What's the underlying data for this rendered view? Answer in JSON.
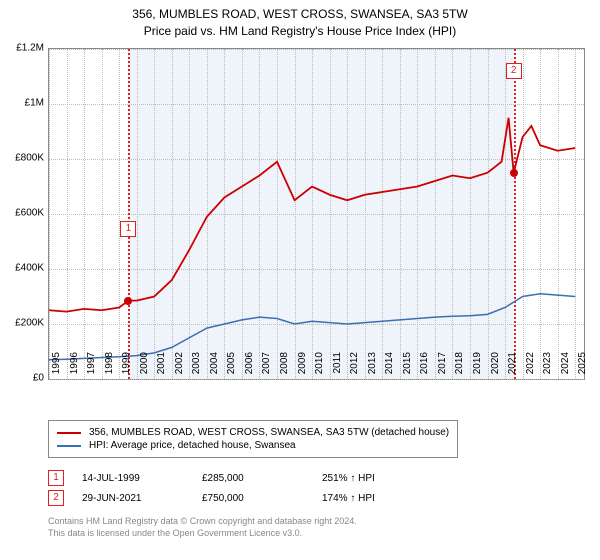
{
  "title_line1": "356, MUMBLES ROAD, WEST CROSS, SWANSEA, SA3 5TW",
  "title_line2": "Price paid vs. HM Land Registry's House Price Index (HPI)",
  "chart": {
    "type": "line",
    "x_start": 1995,
    "x_end": 2025.5,
    "y_min": 0,
    "y_max": 1200000,
    "y_ticks": [
      0,
      200000,
      400000,
      600000,
      800000,
      1000000,
      1200000
    ],
    "y_tick_labels": [
      "£0",
      "£200K",
      "£400K",
      "£600K",
      "£800K",
      "£1M",
      "£1.2M"
    ],
    "x_ticks": [
      1995,
      1996,
      1997,
      1998,
      1999,
      2000,
      2001,
      2002,
      2003,
      2004,
      2005,
      2006,
      2007,
      2008,
      2009,
      2010,
      2011,
      2012,
      2013,
      2014,
      2015,
      2016,
      2017,
      2018,
      2019,
      2020,
      2021,
      2022,
      2023,
      2024,
      2025
    ],
    "shade_start": 1999.53,
    "shade_end": 2021.49,
    "background_color": "#ffffff",
    "grid_color": "#bbbbbb",
    "series": [
      {
        "name": "property",
        "color": "#cc0000",
        "width": 1.8,
        "points": [
          [
            1995,
            250000
          ],
          [
            1996,
            245000
          ],
          [
            1997,
            255000
          ],
          [
            1998,
            250000
          ],
          [
            1999,
            260000
          ],
          [
            1999.53,
            285000
          ],
          [
            2000,
            285000
          ],
          [
            2001,
            300000
          ],
          [
            2002,
            360000
          ],
          [
            2003,
            470000
          ],
          [
            2004,
            590000
          ],
          [
            2005,
            660000
          ],
          [
            2006,
            700000
          ],
          [
            2007,
            740000
          ],
          [
            2008,
            790000
          ],
          [
            2008.5,
            720000
          ],
          [
            2009,
            650000
          ],
          [
            2010,
            700000
          ],
          [
            2011,
            670000
          ],
          [
            2012,
            650000
          ],
          [
            2013,
            670000
          ],
          [
            2014,
            680000
          ],
          [
            2015,
            690000
          ],
          [
            2016,
            700000
          ],
          [
            2017,
            720000
          ],
          [
            2018,
            740000
          ],
          [
            2019,
            730000
          ],
          [
            2020,
            750000
          ],
          [
            2020.8,
            790000
          ],
          [
            2021.2,
            950000
          ],
          [
            2021.49,
            750000
          ],
          [
            2022,
            880000
          ],
          [
            2022.5,
            920000
          ],
          [
            2023,
            850000
          ],
          [
            2024,
            830000
          ],
          [
            2025,
            840000
          ]
        ]
      },
      {
        "name": "hpi",
        "color": "#3b6fb3",
        "width": 1.5,
        "points": [
          [
            1995,
            70000
          ],
          [
            1996,
            72000
          ],
          [
            1997,
            75000
          ],
          [
            1998,
            78000
          ],
          [
            1999,
            81000
          ],
          [
            2000,
            85000
          ],
          [
            2001,
            95000
          ],
          [
            2002,
            115000
          ],
          [
            2003,
            150000
          ],
          [
            2004,
            185000
          ],
          [
            2005,
            200000
          ],
          [
            2006,
            215000
          ],
          [
            2007,
            225000
          ],
          [
            2008,
            220000
          ],
          [
            2009,
            200000
          ],
          [
            2010,
            210000
          ],
          [
            2011,
            205000
          ],
          [
            2012,
            200000
          ],
          [
            2013,
            205000
          ],
          [
            2014,
            210000
          ],
          [
            2015,
            215000
          ],
          [
            2016,
            220000
          ],
          [
            2017,
            225000
          ],
          [
            2018,
            228000
          ],
          [
            2019,
            230000
          ],
          [
            2020,
            235000
          ],
          [
            2021,
            260000
          ],
          [
            2022,
            300000
          ],
          [
            2023,
            310000
          ],
          [
            2024,
            305000
          ],
          [
            2025,
            300000
          ]
        ]
      }
    ],
    "markers": [
      {
        "id": "1",
        "x": 1999.53,
        "y": 285000,
        "dot_color": "#cc0000",
        "box_y_offset": -80
      },
      {
        "id": "2",
        "x": 2021.49,
        "y": 750000,
        "dot_color": "#cc0000",
        "box_y_offset": -110
      }
    ]
  },
  "legend": {
    "items": [
      {
        "color": "#cc0000",
        "label": "356, MUMBLES ROAD, WEST CROSS, SWANSEA, SA3 5TW (detached house)"
      },
      {
        "color": "#3b6fb3",
        "label": "HPI: Average price, detached house, Swansea"
      }
    ]
  },
  "transactions": [
    {
      "id": "1",
      "date": "14-JUL-1999",
      "price": "£285,000",
      "change": "251%",
      "direction": "↑",
      "suffix": "HPI"
    },
    {
      "id": "2",
      "date": "29-JUN-2021",
      "price": "£750,000",
      "change": "174%",
      "direction": "↑",
      "suffix": "HPI"
    }
  ],
  "footer": {
    "line1": "Contains HM Land Registry data © Crown copyright and database right 2024.",
    "line2": "This data is licensed under the Open Government Licence v3.0."
  }
}
